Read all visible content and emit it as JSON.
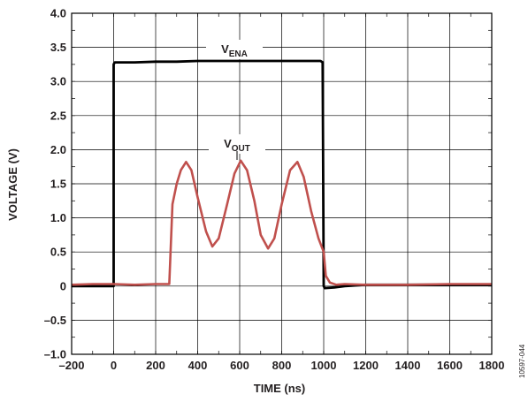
{
  "chart_data": {
    "type": "line",
    "title": "",
    "xlabel": "TIME (ns)",
    "ylabel": "VOLTAGE (V)",
    "xlim": [
      -200,
      1800
    ],
    "ylim": [
      -1.0,
      4.0
    ],
    "x_ticks": [
      -200,
      0,
      200,
      400,
      600,
      800,
      1000,
      1200,
      1400,
      1600,
      1800
    ],
    "x_tick_labels": [
      "–200",
      "0",
      "200",
      "400",
      "600",
      "800",
      "1000",
      "1200",
      "1400",
      "1600",
      "1800"
    ],
    "y_ticks": [
      -1.0,
      -0.5,
      0,
      0.5,
      1.0,
      1.5,
      2.0,
      2.5,
      3.0,
      3.5,
      4.0
    ],
    "y_tick_labels": [
      "–1.0",
      "–0.5",
      "0",
      "0.5",
      "1.0",
      "1.5",
      "2.0",
      "2.5",
      "3.0",
      "3.5",
      "4.0"
    ],
    "x_minor_step": 100,
    "y_minor_step": 0.25,
    "grid": true,
    "figure_id": "10597-044",
    "series": [
      {
        "name": "V_ENA",
        "label_main": "V",
        "label_sub": "ENA",
        "color": "#000000",
        "x": [
          -200,
          -100,
          -5,
          0,
          0,
          5,
          100,
          200,
          300,
          400,
          500,
          600,
          700,
          800,
          900,
          985,
          995,
          1000,
          1005,
          1050,
          1100,
          1200,
          1400,
          1600,
          1800
        ],
        "y": [
          0.0,
          0.0,
          0.0,
          0.0,
          3.25,
          3.28,
          3.28,
          3.29,
          3.29,
          3.3,
          3.3,
          3.3,
          3.3,
          3.3,
          3.3,
          3.3,
          3.28,
          0.0,
          -0.03,
          -0.02,
          0.0,
          0.02,
          0.02,
          0.02,
          0.02
        ]
      },
      {
        "name": "V_OUT",
        "label_main": "V",
        "label_sub": "OUT",
        "color": "#c0504d",
        "x": [
          -200,
          -100,
          0,
          100,
          200,
          265,
          280,
          290,
          300,
          320,
          345,
          370,
          400,
          440,
          470,
          500,
          540,
          575,
          605,
          635,
          670,
          700,
          735,
          765,
          800,
          840,
          875,
          905,
          940,
          975,
          1000,
          1010,
          1030,
          1060,
          1100,
          1200,
          1400,
          1600,
          1800
        ],
        "y": [
          0.02,
          0.03,
          0.03,
          0.02,
          0.03,
          0.03,
          1.2,
          1.35,
          1.5,
          1.7,
          1.82,
          1.7,
          1.3,
          0.8,
          0.58,
          0.7,
          1.2,
          1.65,
          1.84,
          1.7,
          1.25,
          0.75,
          0.55,
          0.7,
          1.2,
          1.7,
          1.82,
          1.6,
          1.1,
          0.7,
          0.5,
          0.15,
          0.05,
          0.02,
          0.03,
          0.02,
          0.02,
          0.03,
          0.03
        ]
      }
    ]
  }
}
